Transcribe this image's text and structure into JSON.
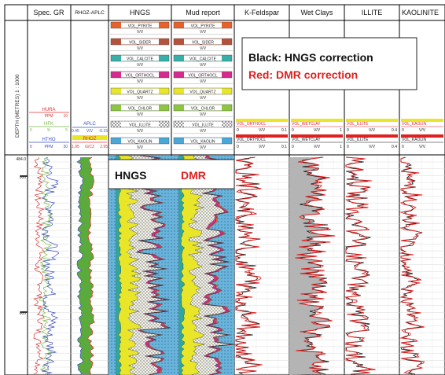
{
  "depth_axis": {
    "title": "DEPTH (METRES) 1 : 1000",
    "ticks": [
      "484.0",
      "500",
      "600"
    ]
  },
  "tracks": {
    "spec_gr": {
      "header": "Spec. GR",
      "curves": [
        {
          "name": "HURA",
          "min": "",
          "unit": "PPM",
          "max": "10",
          "color": "#e03030"
        },
        {
          "name": "HFK",
          "min": "0",
          "unit": "%",
          "max": "5",
          "color": "#7ab648"
        },
        {
          "name": "HTHO",
          "min": "0",
          "unit": "PPM",
          "max": "30",
          "color": "#3a4fbf"
        }
      ]
    },
    "rhoz_aplc": {
      "header": "RHOZ-APLC",
      "curves": [
        {
          "name": "APLC",
          "min": "0.45",
          "unit": "V/V",
          "max": "-0.15",
          "color": "#3a4fbf"
        },
        {
          "name": "RHOZ",
          "min": "1.95",
          "unit": "G/C3",
          "max": "2.95",
          "color": "#e03030"
        }
      ]
    },
    "hngs": {
      "header": "HNGS"
    },
    "mud_report": {
      "header": "Mud report"
    },
    "k_feldspar": {
      "header": "K-Feldspar"
    },
    "wet_clays": {
      "header": "Wet Clays"
    },
    "illite": {
      "header": "ILLITE"
    },
    "kaolinite": {
      "header": "KAOLINITE"
    }
  },
  "volume_curves": [
    {
      "name": "VOL_PYRITE",
      "unit": "V/V",
      "color": "#e8612b"
    },
    {
      "name": "VOL_SIDER",
      "unit": "V/V",
      "color": "#b5523b"
    },
    {
      "name": "VOL_CALCITE",
      "unit": "V/V",
      "color": "#36b0a8"
    },
    {
      "name": "VOL_ORTHOCL",
      "unit": "V/V",
      "color": "#d62a8e"
    },
    {
      "name": "VOL_QUARTZ",
      "unit": "V/V",
      "color": "#e9e62a"
    },
    {
      "name": "VOL_CHLOR",
      "unit": "V/V",
      "color": "#8dc63f"
    },
    {
      "name": "VOL_ILLITE",
      "unit": "V/V",
      "color": "#d8d8d8"
    },
    {
      "name": "VOL_KAOLIN",
      "unit": "V/V",
      "color": "#4aa7d6"
    }
  ],
  "mineral_tracks": [
    {
      "red_label": "VOL_ORTHOCL",
      "black_label": "VOL_ORTHOCL",
      "min": "0",
      "unit": "V/V",
      "max": "0.1",
      "accent": "#e9e62a"
    },
    {
      "red_label": "VOL_WETCLAY",
      "black_label": "VOL_WETCLAY",
      "min": "0",
      "unit": "V/V",
      "max": "1",
      "accent": "#e9e62a"
    },
    {
      "red_label": "VOL_ILLITE",
      "black_label": "VOL_ILLITE",
      "min": "0",
      "unit": "V/V",
      "max": "0.4",
      "accent": "#e9e62a"
    },
    {
      "red_label": "VOL_KAOLIN",
      "black_label": "VOL_KAOLIN",
      "min": "0",
      "unit": "V/V",
      "max": "",
      "accent": "#e9e62a"
    }
  ],
  "legend": {
    "black": "Black:  HNGS correction",
    "red": "Red: DMR correction"
  },
  "panel_labels": {
    "hngs": "HNGS",
    "dmr": "DMR"
  },
  "colors": {
    "red": "#e02020",
    "black": "#111111",
    "wet_clay_fill": "#b4b4b4",
    "water": "#6db6e0"
  }
}
